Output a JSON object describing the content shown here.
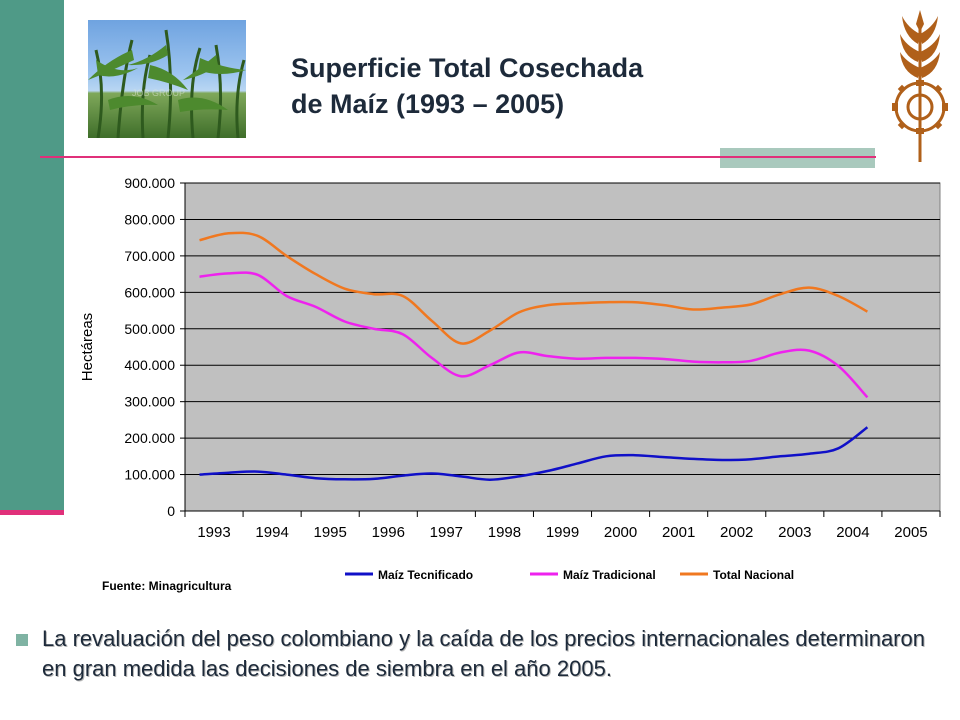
{
  "slide": {
    "title_line1": "Superficie Total Cosechada",
    "title_line2": "de Maíz  (1993 – 2005)",
    "photo_watermark": "JOB GROUP",
    "source": "Fuente: Minagricultura",
    "bullet": "La revaluación del peso colombiano y la caída de los precios internacionales determinaron en gran medida las decisiones de siembra en el año 2005."
  },
  "colors": {
    "left_bar": "#4f9a87",
    "accent_pink": "#e0307a",
    "plot_bg": "#c0c0c0",
    "logo": "#b0601a"
  },
  "chart_data": {
    "type": "line",
    "title": "",
    "xlabel": "",
    "ylabel": "Hectáreas",
    "ylim": [
      0,
      900000
    ],
    "yticks": [
      "0",
      "100.000",
      "200.000",
      "300.000",
      "400.000",
      "500.000",
      "600.000",
      "700.000",
      "800.000",
      "900.000"
    ],
    "xticks": [
      "1993",
      "1994",
      "1995",
      "1996",
      "1997",
      "1998",
      "1999",
      "2000",
      "2001",
      "2002",
      "2003",
      "2004",
      "2005"
    ],
    "grid": true,
    "legend": "bottom",
    "series": [
      {
        "name": "Maíz Tecnificado",
        "color": "#1010c8",
        "x": [
          1993.25,
          1993.75,
          1994.25,
          1994.75,
          1995.25,
          1995.75,
          1996.25,
          1996.75,
          1997.25,
          1997.75,
          1998.25,
          1998.75,
          1999.25,
          1999.75,
          2000.25,
          2000.75,
          2001.25,
          2001.75,
          2002.25,
          2002.75,
          2003.25,
          2003.75,
          2004.25,
          2004.75
        ],
        "values": [
          100000,
          105000,
          108000,
          100000,
          90000,
          87000,
          88000,
          97000,
          103000,
          95000,
          86000,
          95000,
          110000,
          130000,
          150000,
          153000,
          148000,
          143000,
          140000,
          142000,
          150000,
          157000,
          172000,
          230000
        ]
      },
      {
        "name": "Maíz Tradicional",
        "color": "#ee22ee",
        "x": [
          1993.25,
          1993.75,
          1994.25,
          1994.75,
          1995.25,
          1995.75,
          1996.25,
          1996.75,
          1997.25,
          1997.75,
          1998.25,
          1998.75,
          1999.25,
          1999.75,
          2000.25,
          2000.75,
          2001.25,
          2001.75,
          2002.25,
          2002.75,
          2003.25,
          2003.75,
          2004.25,
          2004.75
        ],
        "values": [
          643000,
          652000,
          648000,
          590000,
          560000,
          520000,
          500000,
          485000,
          420000,
          370000,
          400000,
          435000,
          425000,
          418000,
          420000,
          420000,
          417000,
          410000,
          408000,
          412000,
          435000,
          440000,
          398000,
          312000
        ]
      },
      {
        "name": "Total Nacional",
        "color": "#f07820",
        "x": [
          1993.25,
          1993.75,
          1994.25,
          1994.75,
          1995.25,
          1995.75,
          1996.25,
          1996.75,
          1997.25,
          1997.75,
          1998.25,
          1998.75,
          1999.25,
          1999.75,
          2000.25,
          2000.75,
          2001.25,
          2001.75,
          2002.25,
          2002.75,
          2003.25,
          2003.75,
          2004.25,
          2004.75
        ],
        "values": [
          743000,
          762000,
          755000,
          700000,
          650000,
          610000,
          595000,
          590000,
          522000,
          460000,
          495000,
          545000,
          565000,
          570000,
          573000,
          573000,
          565000,
          553000,
          558000,
          567000,
          595000,
          613000,
          590000,
          547000
        ]
      }
    ]
  }
}
